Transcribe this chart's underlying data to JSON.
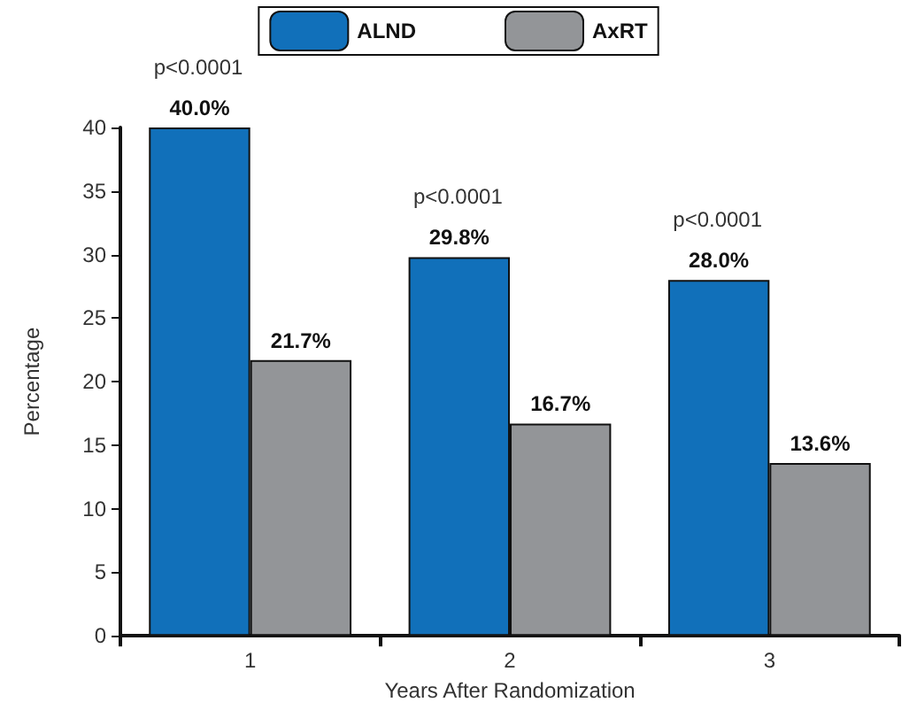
{
  "chart_data": {
    "type": "bar",
    "xlabel": "Years After Randomization",
    "ylabel": "Percentage",
    "categories": [
      "1",
      "2",
      "3"
    ],
    "series": [
      {
        "name": "ALND",
        "color": "#1170ba",
        "values": [
          40.0,
          29.8,
          28.0
        ],
        "value_labels": [
          "40.0%",
          "29.8%",
          "28.0%"
        ]
      },
      {
        "name": "AxRT",
        "color": "#939598",
        "values": [
          21.7,
          16.7,
          13.6
        ],
        "value_labels": [
          "21.7%",
          "16.7%",
          "13.6%"
        ]
      }
    ],
    "annotations": [
      "p<0.0001",
      "p<0.0001",
      "p<0.0001"
    ],
    "ylim": [
      0,
      40
    ],
    "yticks": [
      0,
      5,
      10,
      15,
      20,
      25,
      30,
      35,
      40
    ],
    "grid": false,
    "legend": "top"
  }
}
